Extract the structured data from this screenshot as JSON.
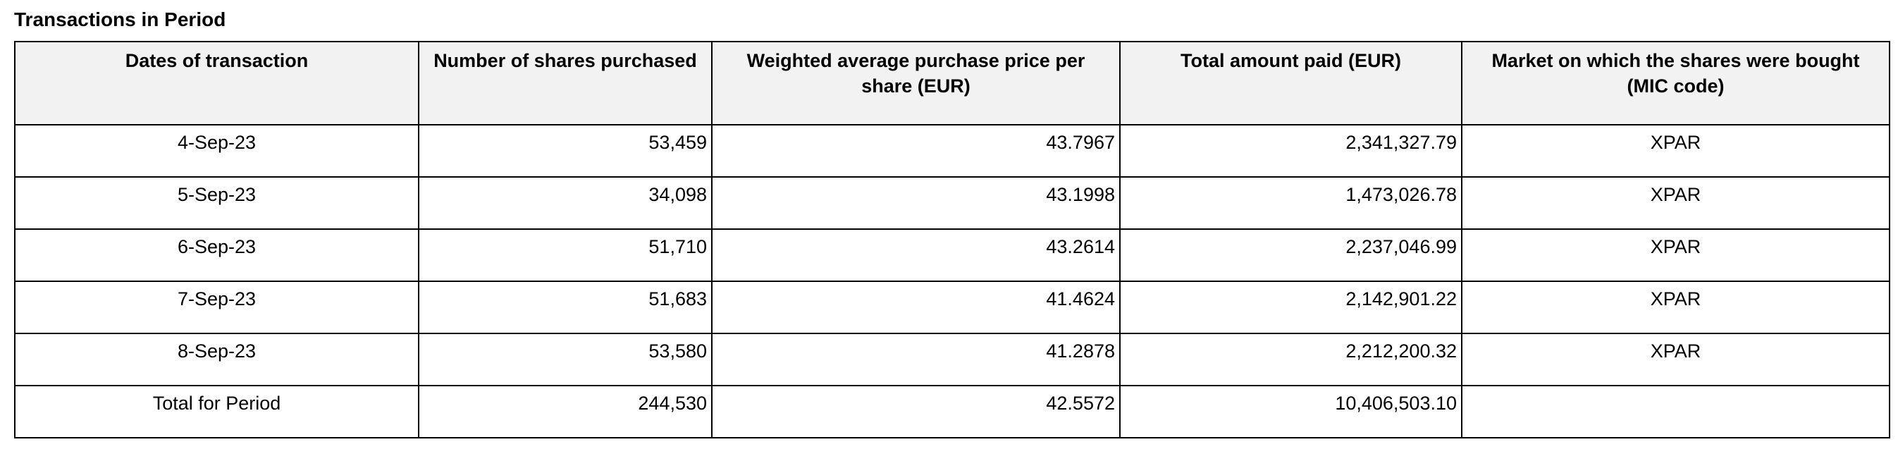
{
  "page": {
    "title": "Transactions in Period"
  },
  "colors": {
    "header_bg": "#f2f2f2",
    "border": "#000000",
    "text": "#000000",
    "page_bg": "#ffffff"
  },
  "table": {
    "columns": [
      {
        "key": "date",
        "label": "Dates of transaction",
        "align": "center"
      },
      {
        "key": "shares",
        "label": "Number of shares purchased",
        "align": "right"
      },
      {
        "key": "price",
        "label": "Weighted average purchase price per share (EUR)",
        "align": "right"
      },
      {
        "key": "total",
        "label": "Total amount paid (EUR)",
        "align": "right"
      },
      {
        "key": "market",
        "label": "Market on which the shares were bought (MIC code)",
        "align": "center"
      }
    ],
    "rows": [
      [
        "4-Sep-23",
        "53,459",
        "43.7967",
        "2,341,327.79",
        "XPAR"
      ],
      [
        "5-Sep-23",
        "34,098",
        "43.1998",
        "1,473,026.78",
        "XPAR"
      ],
      [
        "6-Sep-23",
        "51,710",
        "43.2614",
        "2,237,046.99",
        "XPAR"
      ],
      [
        "7-Sep-23",
        "51,683",
        "41.4624",
        "2,142,901.22",
        "XPAR"
      ],
      [
        "8-Sep-23",
        "53,580",
        "41.2878",
        "2,212,200.32",
        "XPAR"
      ]
    ],
    "total_row": [
      "Total for Period",
      "244,530",
      "42.5572",
      "10,406,503.10",
      ""
    ]
  }
}
